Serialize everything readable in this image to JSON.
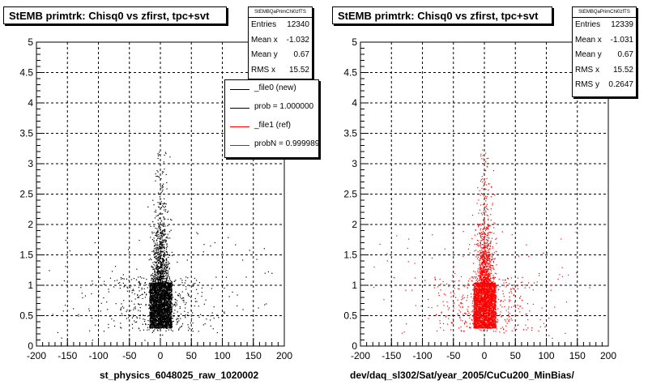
{
  "panels": [
    {
      "title": "StEMB primtrk: Chisq0 vs zfirst, tpc+svt",
      "stats": {
        "name": "StEMBQaPrimChi0zfTS",
        "rows": [
          {
            "label": "Entries",
            "value": "12340"
          },
          {
            "label": "Mean x",
            "value": "-1.032"
          },
          {
            "label": "Mean y",
            "value": "0.67"
          },
          {
            "label": "RMS x",
            "value": "15.52"
          }
        ]
      },
      "legend": [
        {
          "label": "_file0 (new)",
          "color": "#000000"
        },
        {
          "label": "prob = 1.000000",
          "color": "#000000"
        },
        {
          "label": "_file1 (ref)",
          "color": "#ff0000"
        },
        {
          "label": "probN = 0.999989",
          "color": "#ff0000"
        }
      ],
      "xlabel": "st_physics_6048025_raw_1020002",
      "marker_color": "#000000"
    },
    {
      "title": "StEMB primtrk: Chisq0 vs zfirst, tpc+svt",
      "stats": {
        "name": "StEMBQaPrimChi0zfTS",
        "rows": [
          {
            "label": "Entries",
            "value": "12339"
          },
          {
            "label": "Mean x",
            "value": "-1.031"
          },
          {
            "label": "Mean y",
            "value": "0.67"
          },
          {
            "label": "RMS x",
            "value": "15.52"
          },
          {
            "label": "RMS y",
            "value": "0.2647"
          }
        ]
      },
      "xlabel": "dev/daq_sl302/Sat/year_2005/CuCu200_MinBias/",
      "marker_color": "#ff0000"
    }
  ],
  "chart_data": [
    {
      "type": "scatter",
      "title": "StEMB primtrk: Chisq0 vs zfirst, tpc+svt",
      "xlabel": "st_physics_6048025_raw_1020002",
      "ylabel": "",
      "xlim": [
        -200,
        200
      ],
      "ylim": [
        0,
        5
      ],
      "x_ticks": [
        "-200",
        "-150",
        "-100",
        "-50",
        "0",
        "50",
        "100",
        "150",
        "200"
      ],
      "y_ticks": [
        "0",
        "0.5",
        "1",
        "1.5",
        "2",
        "2.5",
        "3",
        "3.5",
        "4",
        "4.5",
        "5"
      ],
      "grid": true,
      "series": [
        {
          "name": "_file0 (new)",
          "color": "#000000",
          "entries": 12340,
          "mean_x": -1.032,
          "mean_y": 0.67,
          "rms_x": 15.52,
          "core": {
            "x_range": [
              -18,
              18
            ],
            "y_range": [
              0.3,
              1.05
            ]
          }
        }
      ]
    },
    {
      "type": "scatter",
      "title": "StEMB primtrk: Chisq0 vs zfirst, tpc+svt",
      "xlabel": "dev/daq_sl302/Sat/year_2005/CuCu200_MinBias/",
      "ylabel": "",
      "xlim": [
        -200,
        200
      ],
      "ylim": [
        0,
        5
      ],
      "x_ticks": [
        "-200",
        "-150",
        "-100",
        "-50",
        "0",
        "50",
        "100",
        "150",
        "200"
      ],
      "y_ticks": [
        "0",
        "0.5",
        "1",
        "1.5",
        "2",
        "2.5",
        "3",
        "3.5",
        "4",
        "4.5",
        "5"
      ],
      "grid": true,
      "series": [
        {
          "name": "_file1 (ref)",
          "color": "#ff0000",
          "entries": 12339,
          "mean_x": -1.031,
          "mean_y": 0.67,
          "rms_x": 15.52,
          "rms_y": 0.2647,
          "core": {
            "x_range": [
              -18,
              18
            ],
            "y_range": [
              0.3,
              1.05
            ]
          }
        }
      ]
    }
  ]
}
